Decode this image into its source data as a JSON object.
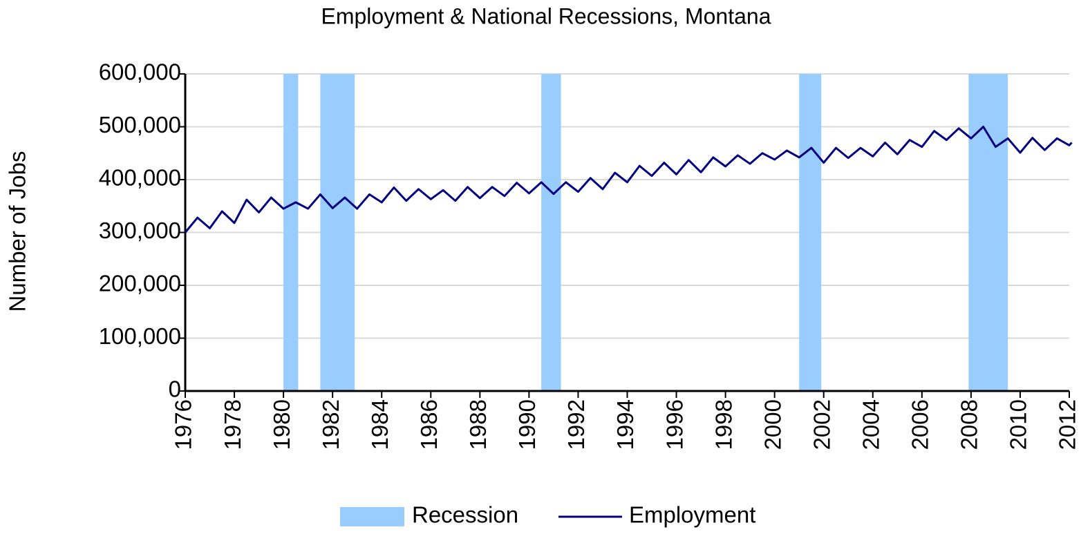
{
  "chart_data": {
    "type": "line",
    "title": "Employment & National Recessions, Montana",
    "y_label": "Number of Jobs",
    "xlim": [
      1976,
      2012
    ],
    "xticks": [
      1976,
      1978,
      1980,
      1982,
      1984,
      1986,
      1988,
      1990,
      1992,
      1994,
      1996,
      1998,
      2000,
      2002,
      2004,
      2006,
      2008,
      2010,
      2012
    ],
    "ylim": [
      0,
      600000
    ],
    "yticks": [
      0,
      {
        "value": 100000,
        "label": "100,000"
      },
      {
        "value": 200000,
        "label": "200,000"
      },
      {
        "value": 300000,
        "label": "300,000"
      },
      {
        "value": 400000,
        "label": "400,000"
      },
      {
        "value": 500000,
        "label": "500,000"
      },
      {
        "value": 600000,
        "label": "600,000"
      }
    ],
    "grid": true,
    "legend": "bottom",
    "recessions": {
      "name": "Recession",
      "color": "#99ccff",
      "periods": [
        [
          1980.0,
          1980.6
        ],
        [
          1981.5,
          1982.9
        ],
        [
          1990.5,
          1991.3
        ],
        [
          2001.0,
          2001.9
        ],
        [
          2007.9,
          2009.5
        ]
      ]
    },
    "series": [
      {
        "name": "Employment",
        "color": "#000080",
        "x": [
          1976.0,
          1976.5,
          1977.0,
          1977.5,
          1978.0,
          1978.5,
          1979.0,
          1979.5,
          1980.0,
          1980.5,
          1981.0,
          1981.5,
          1982.0,
          1982.5,
          1983.0,
          1983.5,
          1984.0,
          1984.5,
          1985.0,
          1985.5,
          1986.0,
          1986.5,
          1987.0,
          1987.5,
          1988.0,
          1988.5,
          1989.0,
          1989.5,
          1990.0,
          1990.5,
          1991.0,
          1991.5,
          1992.0,
          1992.5,
          1993.0,
          1993.5,
          1994.0,
          1994.5,
          1995.0,
          1995.5,
          1996.0,
          1996.5,
          1997.0,
          1997.5,
          1998.0,
          1998.5,
          1999.0,
          1999.5,
          2000.0,
          2000.5,
          2001.0,
          2001.5,
          2002.0,
          2002.5,
          2003.0,
          2003.5,
          2004.0,
          2004.5,
          2005.0,
          2005.5,
          2006.0,
          2006.5,
          2007.0,
          2007.5,
          2008.0,
          2008.5,
          2009.0,
          2009.5,
          2010.0,
          2010.5,
          2011.0,
          2011.5,
          2012.0,
          2012.1
        ],
        "values": [
          300000,
          328000,
          308000,
          340000,
          318000,
          362000,
          338000,
          366000,
          345000,
          357000,
          345000,
          372000,
          346000,
          366000,
          345000,
          372000,
          357000,
          385000,
          360000,
          382000,
          363000,
          380000,
          360000,
          386000,
          365000,
          386000,
          369000,
          394000,
          374000,
          395000,
          373000,
          395000,
          377000,
          403000,
          382000,
          413000,
          395000,
          426000,
          407000,
          432000,
          410000,
          437000,
          414000,
          442000,
          425000,
          446000,
          430000,
          450000,
          438000,
          455000,
          442000,
          460000,
          432000,
          460000,
          441000,
          460000,
          444000,
          470000,
          448000,
          475000,
          462000,
          492000,
          475000,
          497000,
          478000,
          500000,
          462000,
          478000,
          451000,
          479000,
          456000,
          478000,
          465000,
          470000
        ]
      }
    ]
  }
}
